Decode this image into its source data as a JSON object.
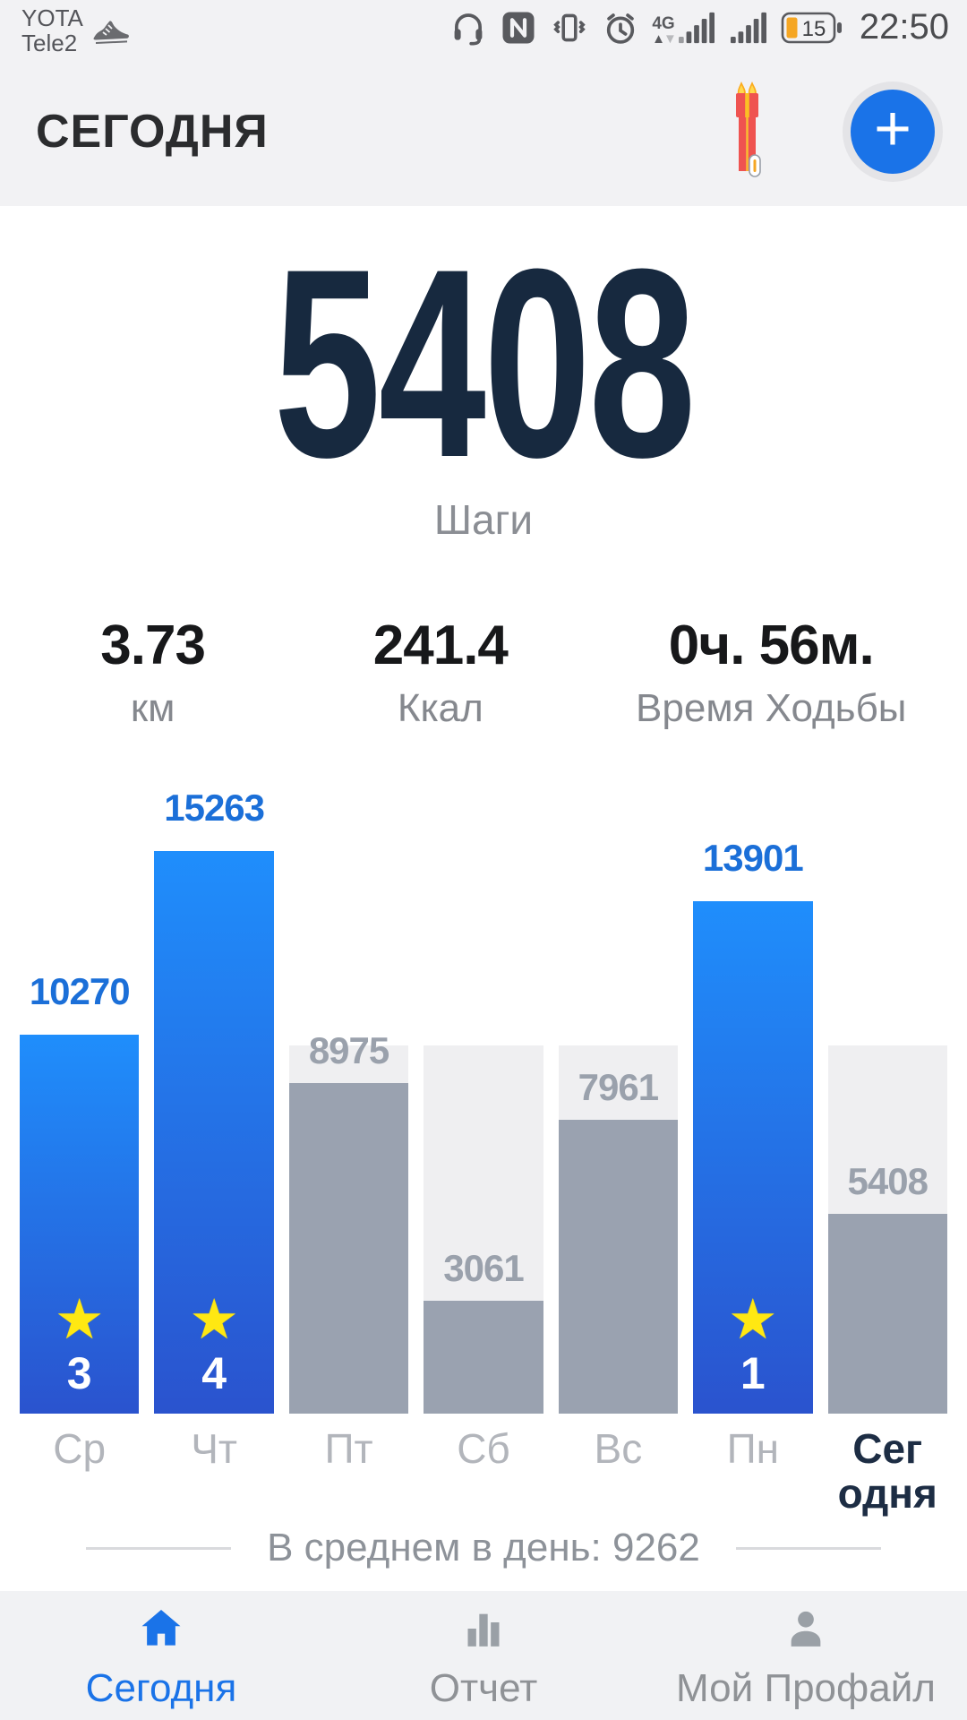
{
  "status_bar": {
    "carrier_line1": "YOTA",
    "carrier_line2": "Tele2",
    "network_badge": "4G",
    "battery_percent": "15",
    "time": "22:50",
    "icons": [
      "shoe-icon",
      "headset-icon",
      "nfc-icon",
      "vibrate-icon",
      "alarm-icon",
      "signal-4g-icon",
      "signal-icon",
      "battery-icon"
    ]
  },
  "header": {
    "title": "СЕГОДНЯ",
    "add_button_label": "+",
    "streak_icon": "burning-match-icon"
  },
  "today": {
    "steps": "5408",
    "steps_label": "Шаги"
  },
  "stats": {
    "distance_value": "3.73",
    "distance_label": "км",
    "calories_value": "241.4",
    "calories_label": "Ккал",
    "walk_time_value": "0ч. 56м.",
    "walk_time_label": "Время Ходьбы"
  },
  "chart_data": {
    "type": "bar",
    "title": "",
    "xlabel": "",
    "ylabel": "",
    "categories": [
      "Ср",
      "Чт",
      "Пт",
      "Сб",
      "Вс",
      "Пн",
      "Сег\nодня"
    ],
    "values": [
      10270,
      15263,
      8975,
      3061,
      7961,
      13901,
      5408
    ],
    "goal": 10000,
    "goal_achieved": [
      true,
      true,
      false,
      false,
      false,
      true,
      false
    ],
    "stars": [
      3,
      4,
      null,
      null,
      null,
      1,
      null
    ],
    "today_index": 6,
    "ylim": [
      0,
      16000
    ],
    "grid": false,
    "legend": "none",
    "colors": {
      "achieved_gradient_top": "#1f8efc",
      "achieved_gradient_bottom": "#2a53ce",
      "missed_bar": "#9aa2b0",
      "goal_background": "#efeff1",
      "achieved_label": "#1b6fd8",
      "missed_label": "#9aa1ac",
      "star": "#ffe812"
    }
  },
  "average": {
    "label": "В среднем в день: 9262",
    "value": 9262
  },
  "bottom_nav": {
    "items": [
      {
        "label": "Сегодня",
        "icon": "home-icon",
        "active": true
      },
      {
        "label": "Отчет",
        "icon": "bar-chart-icon",
        "active": false
      },
      {
        "label": "Мой Профайл",
        "icon": "person-icon",
        "active": false
      }
    ]
  },
  "accent_color": "#1a73e8",
  "battery_color": "#f5a623",
  "number_color": "#17293f"
}
